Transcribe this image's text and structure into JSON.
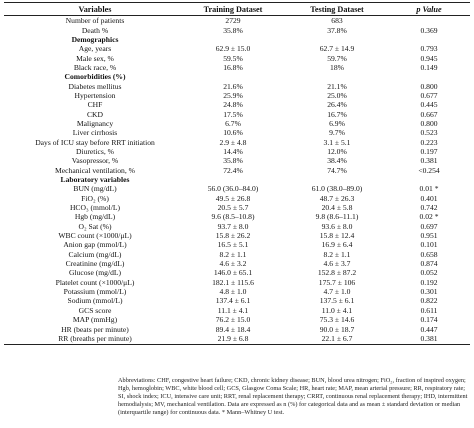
{
  "header": {
    "variables": "Variables",
    "training": "Training Dataset",
    "testing": "Testing Dataset",
    "pvalue": "p Value"
  },
  "rows": [
    {
      "name": "Number of patients",
      "train": "2729",
      "test": "683",
      "p": ""
    },
    {
      "name": "Death %",
      "train": "35.8%",
      "test": "37.8%",
      "p": "0.369"
    },
    {
      "name": "Demographics",
      "train": "",
      "test": "",
      "p": "",
      "section": true
    },
    {
      "name": "Age, years",
      "train": "62.9 ± 15.0",
      "test": "62.7 ± 14.9",
      "p": "0.793"
    },
    {
      "name": "Male sex, %",
      "train": "59.5%",
      "test": "59.7%",
      "p": "0.945"
    },
    {
      "name": "Black race, %",
      "train": "16.8%",
      "test": "18%",
      "p": "0.149"
    },
    {
      "name": "Comorbidities (%)",
      "train": "",
      "test": "",
      "p": "",
      "section": true
    },
    {
      "name": "Diabetes mellitus",
      "train": "21.6%",
      "test": "21.1%",
      "p": "0.800"
    },
    {
      "name": "Hypertension",
      "train": "25.9%",
      "test": "25.0%",
      "p": "0.677"
    },
    {
      "name": "CHF",
      "train": "24.8%",
      "test": "26.4%",
      "p": "0.445"
    },
    {
      "name": "CKD",
      "train": "17.5%",
      "test": "16.7%",
      "p": "0.667"
    },
    {
      "name": "Malignancy",
      "train": "6.7%",
      "test": "6.9%",
      "p": "0.800"
    },
    {
      "name": "Liver cirrhosis",
      "train": "10.6%",
      "test": "9.7%",
      "p": "0.523"
    },
    {
      "name": "Days of ICU stay before RRT initiation",
      "train": "2.9 ± 4.8",
      "test": "3.1 ± 5.1",
      "p": "0.223"
    },
    {
      "name": "Diuretics, %",
      "train": "14.4%",
      "test": "12.0%",
      "p": "0.197"
    },
    {
      "name": "Vasopressor, %",
      "train": "35.8%",
      "test": "38.4%",
      "p": "0.381"
    },
    {
      "name": "Mechanical ventilation, %",
      "train": "72.4%",
      "test": "74.7%",
      "p": "<0.254"
    },
    {
      "name": "Laboratory variables",
      "train": "",
      "test": "",
      "p": "",
      "section": true
    },
    {
      "name": "BUN (mg/dL)",
      "train": "56.0 (36.0–84.0)",
      "test": "61.0 (38.0–89.0)",
      "p": "0.01 *"
    },
    {
      "name": "FiO₂ (%)",
      "train": "49.5 ± 26.8",
      "test": "48.7 ± 26.3",
      "p": "0.401"
    },
    {
      "name": "HCO₃ (mmol/L)",
      "train": "20.5 ± 5.7",
      "test": "20.4 ± 5.8",
      "p": "0.742"
    },
    {
      "name": "Hgb (mg/dL)",
      "train": "9.6 (8.5–10.8)",
      "test": "9.8 (8.6–11.1)",
      "p": "0.02 *"
    },
    {
      "name": "O₂ Sat (%)",
      "train": "93.7 ± 8.0",
      "test": "93.6 ± 8.0",
      "p": "0.697"
    },
    {
      "name": "WBC count (×1000/μL)",
      "train": "15.8 ± 26.2",
      "test": "15.8 ± 12.4",
      "p": "0.951"
    },
    {
      "name": "Anion gap (mmol/L)",
      "train": "16.5 ± 5.1",
      "test": "16.9 ± 6.4",
      "p": "0.101"
    },
    {
      "name": "Calcium (mg/dL)",
      "train": "8.2 ± 1.1",
      "test": "8.2 ± 1.1",
      "p": "0.658"
    },
    {
      "name": "Creatinine (mg/dL)",
      "train": "4.6 ± 3.2",
      "test": "4.6 ± 3.7",
      "p": "0.874"
    },
    {
      "name": "Glucose (mg/dL)",
      "train": "146.0 ± 65.1",
      "test": "152.8 ± 87.2",
      "p": "0.052"
    },
    {
      "name": "Platelet count (×1000/μL)",
      "train": "182.1 ± 115.6",
      "test": "175.7 ± 106",
      "p": "0.192"
    },
    {
      "name": "Potassium (mmol/L)",
      "train": "4.8 ± 1.0",
      "test": "4.7 ± 1.0",
      "p": "0.301"
    },
    {
      "name": "Sodium (mmol/L)",
      "train": "137.4 ± 6.1",
      "test": "137.5 ± 6.1",
      "p": "0.822"
    },
    {
      "name": "GCS score",
      "train": "11.1 ± 4.1",
      "test": "11.0 ± 4.1",
      "p": "0.611"
    },
    {
      "name": "MAP (mmHg)",
      "train": "76.2 ± 15.0",
      "test": "75.3 ± 14.6",
      "p": "0.174"
    },
    {
      "name": "HR (beats per minute)",
      "train": "89.4 ± 18.4",
      "test": "90.0 ± 18.7",
      "p": "0.447"
    },
    {
      "name": "RR (breaths per minute)",
      "train": "21.9 ± 6.8",
      "test": "22.1 ± 6.7",
      "p": "0.381"
    }
  ],
  "footnote": "Abbreviations: CHF, congestive heart failure; CKD, chronic kidney disease; BUN, blood urea nitrogen; FiO₂, fraction of inspired oxygen; Hgb, hemoglobin; WBC, white blood cell; GCS, Glasgow Coma Scale; HR, heart rate; MAP, mean arterial pressure; RR, respiratory rate; SI, shock index; ICU, intensive care unit; RRT, renal replacement therapy; CRRT, continuous renal replacement therapy; IHD, intermittent hemodialysis; MV, mechanical ventilation. Data are expressed as n (%) for categorical data and as mean ± standard deviation or median (interquartile range) for continuous data. * Mann–Whitney U test."
}
